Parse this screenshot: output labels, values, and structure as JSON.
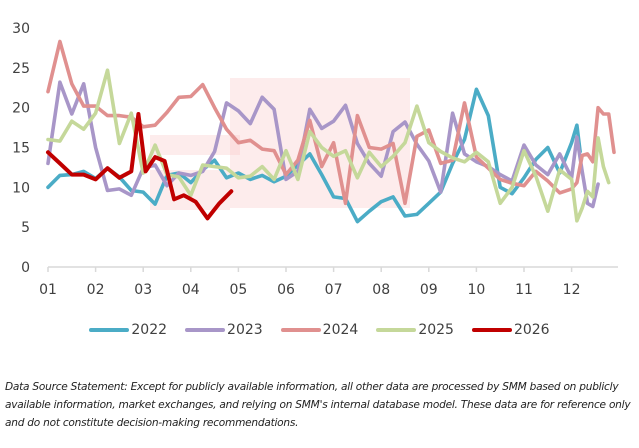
{
  "chart_data": {
    "type": "line",
    "title": "",
    "xlabel": "",
    "ylabel": "",
    "ylim": [
      0,
      30
    ],
    "yticks": [
      0,
      5,
      10,
      15,
      20,
      25,
      30
    ],
    "xlim": [
      1,
      12.95
    ],
    "xticks": [
      "01",
      "02",
      "03",
      "04",
      "05",
      "06",
      "07",
      "08",
      "09",
      "10",
      "11",
      "12"
    ],
    "grid": false,
    "legend": "bottom",
    "series": [
      {
        "name": "2022",
        "color": "#4bacc6",
        "points": [
          [
            1.0,
            10.0
          ],
          [
            1.25,
            11.5
          ],
          [
            1.5,
            11.6
          ],
          [
            1.75,
            12.0
          ],
          [
            2.0,
            11.1
          ],
          [
            2.25,
            12.4
          ],
          [
            2.5,
            11.3
          ],
          [
            2.75,
            9.6
          ],
          [
            3.0,
            9.4
          ],
          [
            3.25,
            7.9
          ],
          [
            3.5,
            11.5
          ],
          [
            3.75,
            11.8
          ],
          [
            4.0,
            10.6
          ],
          [
            4.25,
            12.2
          ],
          [
            4.5,
            13.4
          ],
          [
            4.75,
            11.2
          ],
          [
            5.0,
            11.8
          ],
          [
            5.25,
            11.0
          ],
          [
            5.5,
            11.5
          ],
          [
            5.75,
            10.7
          ],
          [
            6.0,
            11.4
          ],
          [
            6.25,
            12.8
          ],
          [
            6.5,
            14.2
          ],
          [
            6.75,
            11.6
          ],
          [
            7.0,
            8.8
          ],
          [
            7.25,
            8.6
          ],
          [
            7.5,
            5.7
          ],
          [
            7.75,
            7.0
          ],
          [
            8.0,
            8.2
          ],
          [
            8.25,
            8.8
          ],
          [
            8.5,
            6.4
          ],
          [
            8.75,
            6.6
          ],
          [
            9.0,
            8.0
          ],
          [
            9.25,
            9.4
          ],
          [
            9.5,
            13.0
          ],
          [
            9.75,
            16.0
          ],
          [
            10.0,
            22.3
          ],
          [
            10.25,
            19.0
          ],
          [
            10.5,
            10.0
          ],
          [
            10.75,
            9.2
          ],
          [
            11.0,
            11.2
          ],
          [
            11.25,
            13.5
          ],
          [
            11.5,
            15.0
          ],
          [
            11.75,
            11.8
          ],
          [
            12.0,
            15.6
          ],
          [
            12.25,
            17.8
          ],
          [
            12.4,
            14.5
          ]
        ]
      },
      {
        "name": "2023",
        "color": "#a896c8",
        "points": [
          [
            1.0,
            13.0
          ],
          [
            1.25,
            23.2
          ],
          [
            1.5,
            19.2
          ],
          [
            1.75,
            23.0
          ],
          [
            2.0,
            15.0
          ],
          [
            2.25,
            9.6
          ],
          [
            2.5,
            9.8
          ],
          [
            2.75,
            9.0
          ],
          [
            3.0,
            12.4
          ],
          [
            3.25,
            12.8
          ],
          [
            3.5,
            10.2
          ],
          [
            3.75,
            11.8
          ],
          [
            4.0,
            11.5
          ],
          [
            4.25,
            12.0
          ],
          [
            4.5,
            14.5
          ],
          [
            4.75,
            20.6
          ],
          [
            5.0,
            19.6
          ],
          [
            5.25,
            18.0
          ],
          [
            5.5,
            21.3
          ],
          [
            5.75,
            19.8
          ],
          [
            6.0,
            11.0
          ],
          [
            6.25,
            12.0
          ],
          [
            6.5,
            19.8
          ],
          [
            6.75,
            17.4
          ],
          [
            7.0,
            18.3
          ],
          [
            7.25,
            20.3
          ],
          [
            7.5,
            15.5
          ],
          [
            7.75,
            13.0
          ],
          [
            8.0,
            11.4
          ],
          [
            8.25,
            17.0
          ],
          [
            8.5,
            18.2
          ],
          [
            8.75,
            15.4
          ],
          [
            9.0,
            13.3
          ],
          [
            9.25,
            9.4
          ],
          [
            9.5,
            19.3
          ],
          [
            9.75,
            14.2
          ],
          [
            10.0,
            13.2
          ],
          [
            10.25,
            12.6
          ],
          [
            10.5,
            11.6
          ],
          [
            10.75,
            10.8
          ],
          [
            11.0,
            15.3
          ],
          [
            11.25,
            12.8
          ],
          [
            11.5,
            11.6
          ],
          [
            11.75,
            14.2
          ],
          [
            12.0,
            11.2
          ],
          [
            12.25,
            16.3
          ],
          [
            12.5,
            12.0
          ],
          [
            12.75,
            8.0
          ],
          [
            13.0,
            7.6
          ],
          [
            13.25,
            10.4
          ]
        ]
      },
      {
        "name": "2024",
        "color": "#e0908f",
        "points": [
          [
            1.0,
            22.0
          ],
          [
            1.25,
            28.3
          ],
          [
            1.5,
            23.0
          ],
          [
            1.75,
            20.2
          ],
          [
            2.0,
            20.2
          ],
          [
            2.25,
            19.0
          ],
          [
            2.5,
            19.0
          ],
          [
            2.75,
            18.8
          ],
          [
            3.0,
            17.6
          ],
          [
            3.25,
            17.8
          ],
          [
            3.5,
            19.4
          ],
          [
            3.75,
            21.3
          ],
          [
            4.0,
            21.4
          ],
          [
            4.25,
            22.9
          ],
          [
            4.5,
            20.0
          ],
          [
            4.75,
            17.3
          ],
          [
            5.0,
            15.6
          ],
          [
            5.25,
            15.9
          ],
          [
            5.5,
            14.8
          ],
          [
            5.75,
            14.6
          ],
          [
            6.0,
            11.6
          ],
          [
            6.25,
            13.4
          ],
          [
            6.5,
            18.4
          ],
          [
            6.75,
            12.6
          ],
          [
            7.0,
            15.6
          ],
          [
            7.25,
            8.0
          ],
          [
            7.5,
            19.0
          ],
          [
            7.75,
            15.0
          ],
          [
            8.0,
            14.8
          ],
          [
            8.25,
            15.5
          ],
          [
            8.5,
            8.0
          ],
          [
            8.75,
            16.4
          ],
          [
            9.0,
            17.2
          ],
          [
            9.25,
            13.0
          ],
          [
            9.5,
            13.4
          ],
          [
            9.75,
            20.6
          ],
          [
            10.0,
            13.8
          ],
          [
            10.25,
            12.4
          ],
          [
            10.5,
            11.0
          ],
          [
            10.75,
            10.5
          ],
          [
            11.0,
            10.2
          ],
          [
            11.25,
            12.0
          ],
          [
            11.5,
            10.8
          ],
          [
            11.75,
            9.3
          ],
          [
            12.0,
            9.8
          ],
          [
            12.25,
            10.6
          ],
          [
            12.5,
            14.0
          ],
          [
            12.75,
            14.2
          ],
          [
            13.0,
            13.2
          ],
          [
            13.25,
            20.0
          ],
          [
            13.5,
            19.2
          ],
          [
            13.75,
            19.2
          ],
          [
            14.0,
            14.4
          ]
        ]
      },
      {
        "name": "2025",
        "color": "#c5d89a",
        "points": [
          [
            1.0,
            16.0
          ],
          [
            1.25,
            15.8
          ],
          [
            1.5,
            18.3
          ],
          [
            1.75,
            17.3
          ],
          [
            2.0,
            19.3
          ],
          [
            2.25,
            24.7
          ],
          [
            2.5,
            15.5
          ],
          [
            2.75,
            19.3
          ],
          [
            3.0,
            11.8
          ],
          [
            3.25,
            15.3
          ],
          [
            3.5,
            11.6
          ],
          [
            3.75,
            11.3
          ],
          [
            4.0,
            9.0
          ],
          [
            4.25,
            12.8
          ],
          [
            4.5,
            12.6
          ],
          [
            4.75,
            12.4
          ],
          [
            5.0,
            11.2
          ],
          [
            5.25,
            11.4
          ],
          [
            5.5,
            12.6
          ],
          [
            5.75,
            11.0
          ],
          [
            6.0,
            14.6
          ],
          [
            6.25,
            11.0
          ],
          [
            6.5,
            17.0
          ],
          [
            6.75,
            15.0
          ],
          [
            7.0,
            13.9
          ],
          [
            7.25,
            14.6
          ],
          [
            7.5,
            11.2
          ],
          [
            7.75,
            14.4
          ],
          [
            8.0,
            12.6
          ],
          [
            8.25,
            13.9
          ],
          [
            8.5,
            15.6
          ],
          [
            8.75,
            20.2
          ],
          [
            9.0,
            15.6
          ],
          [
            9.25,
            14.5
          ],
          [
            9.5,
            13.7
          ],
          [
            9.75,
            13.2
          ],
          [
            10.0,
            14.4
          ],
          [
            10.25,
            13.2
          ],
          [
            10.5,
            8.0
          ],
          [
            10.75,
            10.0
          ],
          [
            11.0,
            14.6
          ],
          [
            11.25,
            11.4
          ],
          [
            11.5,
            7.0
          ],
          [
            11.75,
            12.2
          ],
          [
            12.0,
            11.0
          ],
          [
            12.25,
            5.8
          ],
          [
            12.5,
            7.4
          ],
          [
            12.75,
            9.5
          ],
          [
            13.0,
            8.8
          ],
          [
            13.25,
            16.2
          ],
          [
            13.5,
            12.6
          ],
          [
            13.75,
            10.6
          ]
        ]
      },
      {
        "name": "2026",
        "color": "#c00000",
        "points": [
          [
            1.0,
            14.4
          ],
          [
            1.25,
            13.0
          ],
          [
            1.5,
            11.6
          ],
          [
            1.75,
            11.6
          ],
          [
            2.0,
            11.0
          ],
          [
            2.25,
            12.4
          ],
          [
            2.5,
            11.2
          ],
          [
            2.75,
            12.0
          ],
          [
            2.9,
            19.2
          ],
          [
            3.05,
            12.0
          ],
          [
            3.25,
            13.8
          ],
          [
            3.45,
            13.3
          ],
          [
            3.65,
            8.5
          ],
          [
            3.85,
            9.0
          ],
          [
            4.1,
            8.2
          ],
          [
            4.35,
            6.1
          ],
          [
            4.6,
            8.0
          ],
          [
            4.85,
            9.5
          ]
        ]
      }
    ]
  },
  "legend": {
    "items": [
      {
        "label": "2022",
        "color": "#4bacc6"
      },
      {
        "label": "2023",
        "color": "#a896c8"
      },
      {
        "label": "2024",
        "color": "#e0908f"
      },
      {
        "label": "2025",
        "color": "#c5d89a"
      },
      {
        "label": "2026",
        "color": "#c00000"
      }
    ]
  },
  "note": "Data Source Statement: Except for publicly available information, all other data are processed by SMM based on publicly available information, market exchanges, and relying on SMM's internal database model. These data are for reference only and do not constitute decision-making recommendations."
}
